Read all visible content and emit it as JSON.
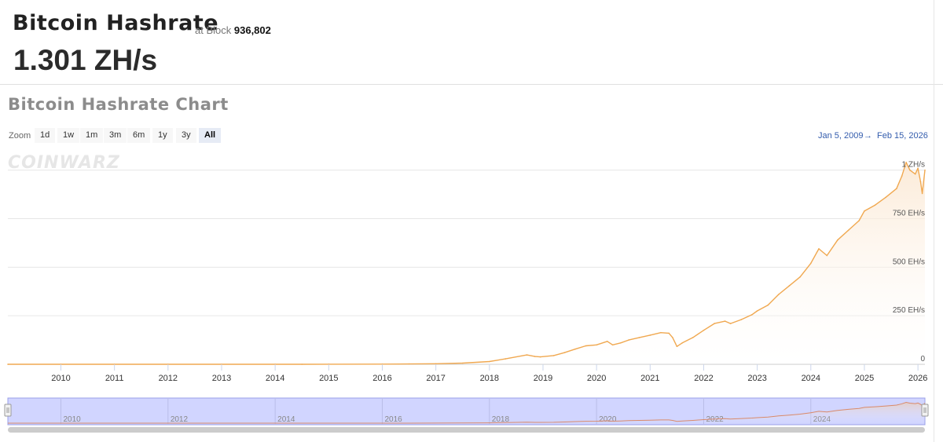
{
  "header": {
    "title": "Bitcoin Hashrate",
    "at_block_label": "at Block",
    "block_number": "936,802",
    "current_hashrate": "1.301 ZH/s"
  },
  "chart_section": {
    "title": "Bitcoin Hashrate Chart",
    "zoom_label": "Zoom",
    "zoom_buttons": [
      "1d",
      "1w",
      "1m",
      "3m",
      "6m",
      "1y",
      "3y",
      "All"
    ],
    "active_zoom": "All",
    "range_from": "Jan 5, 2009",
    "range_arrow": "→",
    "range_to": "Feb 15, 2026",
    "watermark": "COINWARZ"
  },
  "colors": {
    "line": "#f0a850",
    "area_top": "#fbe7d1",
    "navigator_mask": "#ccd0ff",
    "navigator_border": "#9aa0e8",
    "grid": "#e6e6e6"
  },
  "chart_data": {
    "type": "area",
    "title": "",
    "xlabel": "",
    "ylabel": "",
    "y_unit": "EH/s",
    "ylim": [
      0,
      1100
    ],
    "xlim": [
      2009.01,
      2026.13
    ],
    "y_ticks": [
      {
        "value": 0,
        "label": "0"
      },
      {
        "value": 250,
        "label": "250 EH/s"
      },
      {
        "value": 500,
        "label": "500 EH/s"
      },
      {
        "value": 750,
        "label": "750 EH/s"
      },
      {
        "value": 1000,
        "label": "1 ZH/s"
      }
    ],
    "x_ticks": [
      "2010",
      "2011",
      "2012",
      "2013",
      "2014",
      "2015",
      "2016",
      "2017",
      "2018",
      "2019",
      "2020",
      "2021",
      "2022",
      "2023",
      "2024",
      "2025",
      "2026"
    ],
    "navigator_ticks": [
      "2010",
      "2012",
      "2014",
      "2016",
      "2018",
      "2020",
      "2022",
      "2024"
    ],
    "legend": "none",
    "grid": true,
    "series": [
      {
        "x": [
          2009.01,
          2010.0,
          2011.0,
          2012.0,
          2013.0,
          2014.0,
          2014.5,
          2015.0,
          2016.0,
          2016.5,
          2017.0,
          2017.5,
          2018.0,
          2018.3,
          2018.7,
          2018.85,
          2018.95,
          2019.2,
          2019.4,
          2019.6,
          2019.8,
          2020.0,
          2020.2,
          2020.3,
          2020.45,
          2020.6,
          2020.8,
          2021.0,
          2021.2,
          2021.35,
          2021.42,
          2021.5,
          2021.6,
          2021.8,
          2022.0,
          2022.2,
          2022.4,
          2022.5,
          2022.7,
          2022.9,
          2023.0,
          2023.2,
          2023.4,
          2023.6,
          2023.8,
          2024.0,
          2024.15,
          2024.3,
          2024.5,
          2024.7,
          2024.9,
          2025.0,
          2025.2,
          2025.4,
          2025.6,
          2025.7,
          2025.78,
          2025.85,
          2025.95,
          2026.0,
          2026.05,
          2026.08,
          2026.13
        ],
        "y": [
          0,
          0,
          0,
          0,
          0.02,
          0.1,
          0.2,
          0.35,
          0.8,
          1.5,
          3,
          6,
          14,
          28,
          48,
          40,
          38,
          45,
          60,
          78,
          95,
          100,
          118,
          100,
          110,
          125,
          138,
          150,
          163,
          160,
          138,
          92,
          110,
          138,
          175,
          210,
          222,
          210,
          230,
          255,
          275,
          305,
          360,
          405,
          450,
          520,
          595,
          560,
          640,
          690,
          740,
          790,
          820,
          860,
          905,
          970,
          1040,
          1000,
          980,
          1010,
          940,
          880,
          1000
        ]
      }
    ]
  }
}
